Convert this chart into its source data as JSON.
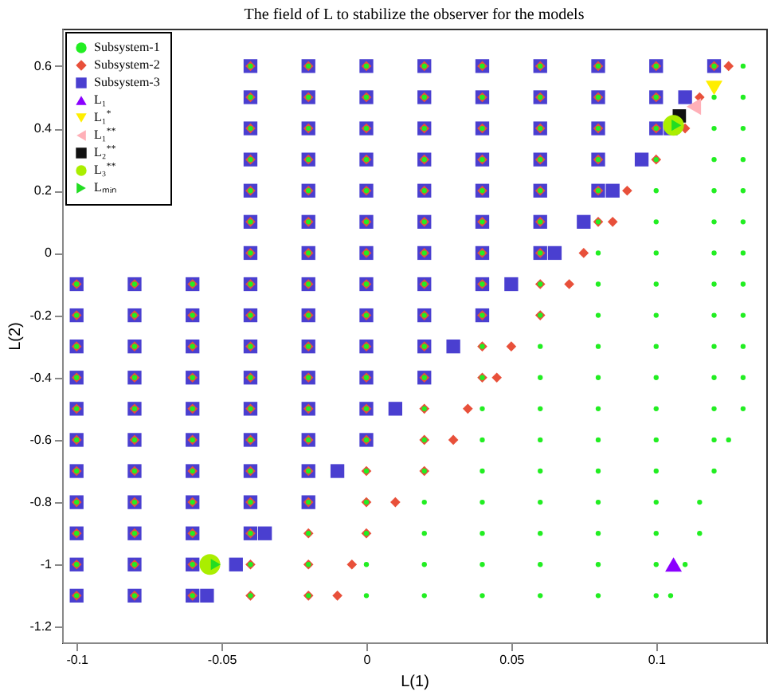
{
  "chart_data": {
    "type": "scatter",
    "title": "The field of L to stabilize the observer for the models",
    "xlabel": "L(1)",
    "ylabel": "L(2)",
    "xlim": [
      -0.105,
      0.138
    ],
    "ylim": [
      -1.25,
      0.72
    ],
    "xticks": [
      -0.1,
      -0.05,
      0,
      0.05,
      0.1
    ],
    "yticks": [
      -1.2,
      -1,
      -0.8,
      -0.6,
      -0.4,
      -0.2,
      0,
      0.2,
      0.4,
      0.6
    ],
    "legend": "top left",
    "series": [
      {
        "name": "Subsystem-1",
        "color": "#22ee22",
        "marker": "circle",
        "x": [
          -0.04,
          -0.02,
          0,
          0.02,
          0.04,
          0.06,
          0.08,
          0.1,
          0.12,
          0.13,
          -0.04,
          -0.02,
          0,
          0.02,
          0.04,
          0.06,
          0.08,
          0.1,
          0.12,
          0.13,
          -0.04,
          -0.02,
          0,
          0.02,
          0.04,
          0.06,
          0.08,
          0.1,
          0.12,
          0.13,
          -0.04,
          -0.02,
          0,
          0.02,
          0.04,
          0.06,
          0.08,
          0.1,
          0.12,
          0.13,
          -0.04,
          -0.02,
          0,
          0.02,
          0.04,
          0.06,
          0.08,
          0.1,
          0.12,
          0.13,
          -0.04,
          -0.02,
          0,
          0.02,
          0.04,
          0.06,
          0.08,
          0.1,
          0.12,
          0.13,
          -0.04,
          -0.02,
          0,
          0.02,
          0.04,
          0.06,
          0.08,
          0.1,
          0.12,
          0.13,
          -0.1,
          -0.08,
          -0.06,
          -0.04,
          -0.02,
          0,
          0.02,
          0.04,
          0.06,
          0.08,
          0.1,
          0.12,
          0.13,
          -0.1,
          -0.08,
          -0.06,
          -0.04,
          -0.02,
          0,
          0.02,
          0.04,
          0.06,
          0.08,
          0.1,
          0.12,
          0.13,
          -0.1,
          -0.08,
          -0.06,
          -0.04,
          -0.02,
          0,
          0.02,
          0.04,
          0.06,
          0.08,
          0.1,
          0.12,
          0.13,
          -0.1,
          -0.08,
          -0.06,
          -0.04,
          -0.02,
          0,
          0.02,
          0.04,
          0.06,
          0.08,
          0.1,
          0.12,
          0.13,
          -0.1,
          -0.08,
          -0.06,
          -0.04,
          -0.02,
          0,
          0.02,
          0.04,
          0.06,
          0.08,
          0.1,
          0.12,
          0.13,
          -0.1,
          -0.08,
          -0.06,
          -0.04,
          -0.02,
          0,
          0.02,
          0.04,
          0.06,
          0.08,
          0.1,
          0.12,
          0.125,
          -0.1,
          -0.08,
          -0.06,
          -0.04,
          -0.02,
          0,
          0.02,
          0.04,
          0.06,
          0.08,
          0.1,
          0.12,
          -0.1,
          -0.08,
          -0.06,
          -0.04,
          -0.02,
          0,
          0.02,
          0.04,
          0.06,
          0.08,
          0.1,
          0.115,
          -0.1,
          -0.08,
          -0.06,
          -0.04,
          -0.02,
          0,
          0.02,
          0.04,
          0.06,
          0.08,
          0.1,
          0.115,
          -0.1,
          -0.08,
          -0.06,
          -0.04,
          -0.02,
          0,
          0.02,
          0.04,
          0.06,
          0.08,
          0.1,
          0.11,
          -0.1,
          -0.08,
          -0.06,
          -0.04,
          -0.02,
          0,
          0.02,
          0.04,
          0.06,
          0.08,
          0.1,
          0.105
        ],
        "values": [
          0.6,
          0.6,
          0.6,
          0.6,
          0.6,
          0.6,
          0.6,
          0.6,
          0.6,
          0.6,
          0.5,
          0.5,
          0.5,
          0.5,
          0.5,
          0.5,
          0.5,
          0.5,
          0.5,
          0.5,
          0.4,
          0.4,
          0.4,
          0.4,
          0.4,
          0.4,
          0.4,
          0.4,
          0.4,
          0.4,
          0.3,
          0.3,
          0.3,
          0.3,
          0.3,
          0.3,
          0.3,
          0.3,
          0.3,
          0.3,
          0.2,
          0.2,
          0.2,
          0.2,
          0.2,
          0.2,
          0.2,
          0.2,
          0.2,
          0.2,
          0.1,
          0.1,
          0.1,
          0.1,
          0.1,
          0.1,
          0.1,
          0.1,
          0.1,
          0.1,
          0,
          0,
          0,
          0,
          0,
          0,
          0,
          0,
          0,
          0,
          -0.1,
          -0.1,
          -0.1,
          -0.1,
          -0.1,
          -0.1,
          -0.1,
          -0.1,
          -0.1,
          -0.1,
          -0.1,
          -0.1,
          -0.1,
          -0.2,
          -0.2,
          -0.2,
          -0.2,
          -0.2,
          -0.2,
          -0.2,
          -0.2,
          -0.2,
          -0.2,
          -0.2,
          -0.2,
          -0.2,
          -0.3,
          -0.3,
          -0.3,
          -0.3,
          -0.3,
          -0.3,
          -0.3,
          -0.3,
          -0.3,
          -0.3,
          -0.3,
          -0.3,
          -0.3,
          -0.4,
          -0.4,
          -0.4,
          -0.4,
          -0.4,
          -0.4,
          -0.4,
          -0.4,
          -0.4,
          -0.4,
          -0.4,
          -0.4,
          -0.4,
          -0.5,
          -0.5,
          -0.5,
          -0.5,
          -0.5,
          -0.5,
          -0.5,
          -0.5,
          -0.5,
          -0.5,
          -0.5,
          -0.5,
          -0.5,
          -0.6,
          -0.6,
          -0.6,
          -0.6,
          -0.6,
          -0.6,
          -0.6,
          -0.6,
          -0.6,
          -0.6,
          -0.6,
          -0.6,
          -0.6,
          -0.7,
          -0.7,
          -0.7,
          -0.7,
          -0.7,
          -0.7,
          -0.7,
          -0.7,
          -0.7,
          -0.7,
          -0.7,
          -0.7,
          -0.8,
          -0.8,
          -0.8,
          -0.8,
          -0.8,
          -0.8,
          -0.8,
          -0.8,
          -0.8,
          -0.8,
          -0.8,
          -0.8,
          -0.9,
          -0.9,
          -0.9,
          -0.9,
          -0.9,
          -0.9,
          -0.9,
          -0.9,
          -0.9,
          -0.9,
          -0.9,
          -0.9,
          -1,
          -1,
          -1,
          -1,
          -1,
          -1,
          -1,
          -1,
          -1,
          -1,
          -1,
          -1,
          -1.1,
          -1.1,
          -1.1,
          -1.1,
          -1.1,
          -1.1,
          -1.1,
          -1.1,
          -1.1,
          -1.1,
          -1.1,
          -1.1
        ]
      },
      {
        "name": "Subsystem-2",
        "color": "#e8503a",
        "marker": "diamond",
        "x": [
          -0.04,
          -0.02,
          0,
          0.02,
          0.04,
          0.06,
          0.08,
          0.1,
          0.12,
          0.125,
          -0.04,
          -0.02,
          0,
          0.02,
          0.04,
          0.06,
          0.08,
          0.1,
          0.115,
          -0.04,
          -0.02,
          0,
          0.02,
          0.04,
          0.06,
          0.08,
          0.1,
          0.11,
          -0.04,
          -0.02,
          0,
          0.02,
          0.04,
          0.06,
          0.08,
          0.1,
          -0.04,
          -0.02,
          0,
          0.02,
          0.04,
          0.06,
          0.08,
          0.09,
          -0.04,
          -0.02,
          0,
          0.02,
          0.04,
          0.06,
          0.08,
          0.085,
          -0.04,
          -0.02,
          0,
          0.02,
          0.04,
          0.06,
          0.075,
          -0.1,
          -0.08,
          -0.06,
          -0.04,
          -0.02,
          0,
          0.02,
          0.04,
          0.06,
          0.07,
          -0.1,
          -0.08,
          -0.06,
          -0.04,
          -0.02,
          0,
          0.02,
          0.04,
          0.06,
          -0.1,
          -0.08,
          -0.06,
          -0.04,
          -0.02,
          0,
          0.02,
          0.04,
          0.05,
          -0.1,
          -0.08,
          -0.06,
          -0.04,
          -0.02,
          0,
          0.02,
          0.04,
          0.045,
          -0.1,
          -0.08,
          -0.06,
          -0.04,
          -0.02,
          0,
          0.02,
          0.035,
          -0.1,
          -0.08,
          -0.06,
          -0.04,
          -0.02,
          0,
          0.02,
          0.03,
          -0.1,
          -0.08,
          -0.06,
          -0.04,
          -0.02,
          0,
          0.02,
          -0.1,
          -0.08,
          -0.06,
          -0.04,
          -0.02,
          0,
          0.01,
          -0.1,
          -0.08,
          -0.06,
          -0.04,
          -0.02,
          0,
          -0.1,
          -0.08,
          -0.06,
          -0.04,
          -0.02,
          -0.005,
          -0.1,
          -0.08,
          -0.06,
          -0.04,
          -0.02,
          -0.01
        ],
        "values": [
          0.6,
          0.6,
          0.6,
          0.6,
          0.6,
          0.6,
          0.6,
          0.6,
          0.6,
          0.6,
          0.5,
          0.5,
          0.5,
          0.5,
          0.5,
          0.5,
          0.5,
          0.5,
          0.5,
          0.4,
          0.4,
          0.4,
          0.4,
          0.4,
          0.4,
          0.4,
          0.4,
          0.4,
          0.3,
          0.3,
          0.3,
          0.3,
          0.3,
          0.3,
          0.3,
          0.3,
          0.2,
          0.2,
          0.2,
          0.2,
          0.2,
          0.2,
          0.2,
          0.2,
          0.1,
          0.1,
          0.1,
          0.1,
          0.1,
          0.1,
          0.1,
          0.1,
          0,
          0,
          0,
          0,
          0,
          0,
          0,
          -0.1,
          -0.1,
          -0.1,
          -0.1,
          -0.1,
          -0.1,
          -0.1,
          -0.1,
          -0.1,
          -0.1,
          -0.2,
          -0.2,
          -0.2,
          -0.2,
          -0.2,
          -0.2,
          -0.2,
          -0.2,
          -0.2,
          -0.3,
          -0.3,
          -0.3,
          -0.3,
          -0.3,
          -0.3,
          -0.3,
          -0.3,
          -0.3,
          -0.4,
          -0.4,
          -0.4,
          -0.4,
          -0.4,
          -0.4,
          -0.4,
          -0.4,
          -0.4,
          -0.5,
          -0.5,
          -0.5,
          -0.5,
          -0.5,
          -0.5,
          -0.5,
          -0.5,
          -0.6,
          -0.6,
          -0.6,
          -0.6,
          -0.6,
          -0.6,
          -0.6,
          -0.6,
          -0.7,
          -0.7,
          -0.7,
          -0.7,
          -0.7,
          -0.7,
          -0.7,
          -0.8,
          -0.8,
          -0.8,
          -0.8,
          -0.8,
          -0.8,
          -0.8,
          -0.9,
          -0.9,
          -0.9,
          -0.9,
          -0.9,
          -0.9,
          -1,
          -1,
          -1,
          -1,
          -1,
          -1,
          -1.1,
          -1.1,
          -1.1,
          -1.1,
          -1.1,
          -1.1
        ]
      },
      {
        "name": "Subsystem-3",
        "color": "#4a3fd0",
        "marker": "square",
        "x": [
          -0.04,
          -0.02,
          0,
          0.02,
          0.04,
          0.06,
          0.08,
          0.1,
          0.12,
          -0.04,
          -0.02,
          0,
          0.02,
          0.04,
          0.06,
          0.08,
          0.1,
          0.11,
          -0.04,
          -0.02,
          0,
          0.02,
          0.04,
          0.06,
          0.08,
          0.1,
          0.105,
          -0.04,
          -0.02,
          0,
          0.02,
          0.04,
          0.06,
          0.08,
          0.095,
          -0.04,
          -0.02,
          0,
          0.02,
          0.04,
          0.06,
          0.08,
          0.085,
          -0.04,
          -0.02,
          0,
          0.02,
          0.04,
          0.06,
          0.075,
          -0.04,
          -0.02,
          0,
          0.02,
          0.04,
          0.06,
          0.065,
          -0.1,
          -0.08,
          -0.06,
          -0.04,
          -0.02,
          0,
          0.02,
          0.04,
          0.05,
          -0.1,
          -0.08,
          -0.06,
          -0.04,
          -0.02,
          0,
          0.02,
          0.04,
          -0.1,
          -0.08,
          -0.06,
          -0.04,
          -0.02,
          0,
          0.02,
          0.03,
          -0.1,
          -0.08,
          -0.06,
          -0.04,
          -0.02,
          0,
          0.02,
          -0.1,
          -0.08,
          -0.06,
          -0.04,
          -0.02,
          0,
          0.01,
          -0.1,
          -0.08,
          -0.06,
          -0.04,
          -0.02,
          0,
          -0.1,
          -0.08,
          -0.06,
          -0.04,
          -0.02,
          -0.01,
          -0.1,
          -0.08,
          -0.06,
          -0.04,
          -0.02,
          -0.1,
          -0.08,
          -0.06,
          -0.04,
          -0.035,
          -0.1,
          -0.08,
          -0.06,
          -0.045,
          -0.1,
          -0.08,
          -0.06,
          -0.055
        ],
        "values": [
          0.6,
          0.6,
          0.6,
          0.6,
          0.6,
          0.6,
          0.6,
          0.6,
          0.6,
          0.5,
          0.5,
          0.5,
          0.5,
          0.5,
          0.5,
          0.5,
          0.5,
          0.5,
          0.4,
          0.4,
          0.4,
          0.4,
          0.4,
          0.4,
          0.4,
          0.4,
          0.4,
          0.3,
          0.3,
          0.3,
          0.3,
          0.3,
          0.3,
          0.3,
          0.3,
          0.2,
          0.2,
          0.2,
          0.2,
          0.2,
          0.2,
          0.2,
          0.2,
          0.1,
          0.1,
          0.1,
          0.1,
          0.1,
          0.1,
          0.1,
          0,
          0,
          0,
          0,
          0,
          0,
          0,
          -0.1,
          -0.1,
          -0.1,
          -0.1,
          -0.1,
          -0.1,
          -0.1,
          -0.1,
          -0.1,
          -0.2,
          -0.2,
          -0.2,
          -0.2,
          -0.2,
          -0.2,
          -0.2,
          -0.2,
          -0.3,
          -0.3,
          -0.3,
          -0.3,
          -0.3,
          -0.3,
          -0.3,
          -0.3,
          -0.4,
          -0.4,
          -0.4,
          -0.4,
          -0.4,
          -0.4,
          -0.4,
          -0.5,
          -0.5,
          -0.5,
          -0.5,
          -0.5,
          -0.5,
          -0.5,
          -0.6,
          -0.6,
          -0.6,
          -0.6,
          -0.6,
          -0.6,
          -0.7,
          -0.7,
          -0.7,
          -0.7,
          -0.7,
          -0.7,
          -0.8,
          -0.8,
          -0.8,
          -0.8,
          -0.8,
          -0.9,
          -0.9,
          -0.9,
          -0.9,
          -0.9,
          -1,
          -1,
          -1,
          -1,
          -1.1,
          -1.1,
          -1.1,
          -1.1
        ]
      },
      {
        "name": "L₁",
        "color": "#8a00ff",
        "marker": "triangle",
        "x": [
          0.106
        ],
        "values": [
          -1
        ]
      },
      {
        "name": "L₁$^{*}$",
        "color": "#ffee00",
        "marker": "triangle-down",
        "x": [
          0.12
        ],
        "values": [
          0.53
        ]
      },
      {
        "name": "L₁$^{**}$",
        "color": "#ffb0b8",
        "marker": "triangle-left",
        "x": [
          0.113
        ],
        "values": [
          0.47
        ]
      },
      {
        "name": "L₂$^{**}$",
        "color": "#111111",
        "marker": "square",
        "x": [
          0.108
        ],
        "values": [
          0.44
        ]
      },
      {
        "name": "L₃$^{**}$",
        "color": "#aaee00",
        "marker": "circle",
        "x": [
          -0.054,
          0.106
        ],
        "values": [
          -1,
          0.41
        ]
      },
      {
        "name": "Lₘᵢₙ",
        "color": "#22dd22",
        "marker": "triangle-right",
        "x": [
          -0.052,
          0.107
        ],
        "values": [
          -1,
          0.41
        ]
      }
    ]
  }
}
